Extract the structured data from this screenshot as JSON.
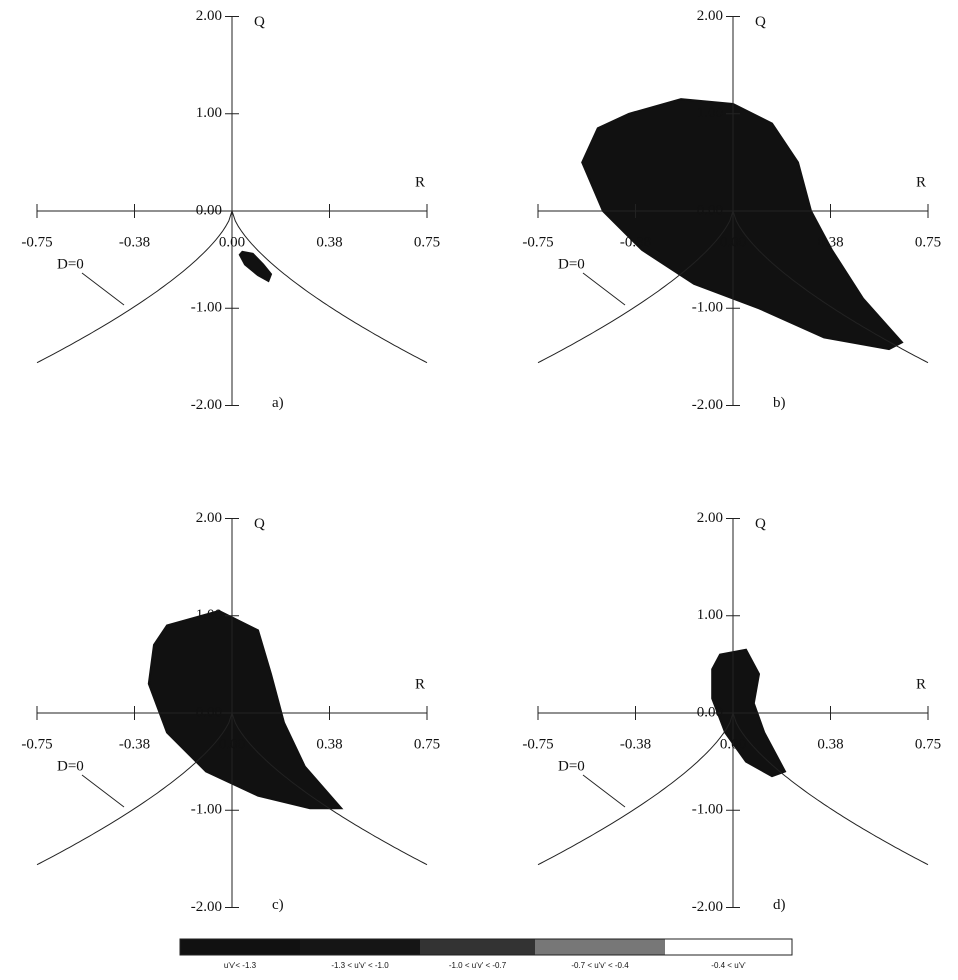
{
  "chart_data": [
    {
      "type": "region",
      "xlabel": "R",
      "ylabel": "Q",
      "panel_label": "a)",
      "curve_label": "D=0",
      "xlim": [
        -0.75,
        0.75
      ],
      "ylim": [
        -2,
        2
      ],
      "xticks": [
        -0.75,
        {
          "value": -0.375,
          "label": "-0.38"
        },
        {
          "value": 0,
          "label": "0.00"
        },
        {
          "value": 0.375,
          "label": "0.38"
        },
        0.75
      ],
      "yticks": [
        {
          "value": -2,
          "label": "-2.00"
        },
        {
          "value": -1,
          "label": "-1.00"
        },
        {
          "value": 0,
          "label": "0.00"
        },
        {
          "value": 1,
          "label": "1.00"
        },
        {
          "value": 2,
          "label": "2.00"
        }
      ],
      "color": "#111111",
      "region": {
        "x": [
          0.04,
          0.08,
          0.12,
          0.15,
          0.14,
          0.1,
          0.05,
          0.03
        ],
        "y": [
          -0.42,
          -0.44,
          -0.55,
          -0.65,
          -0.72,
          -0.66,
          -0.55,
          -0.45
        ]
      }
    },
    {
      "type": "region",
      "xlabel": "R",
      "ylabel": "Q",
      "panel_label": "b)",
      "curve_label": "D=0",
      "xlim": [
        -0.75,
        0.75
      ],
      "ylim": [
        -2,
        2
      ],
      "xticks": [
        -0.75,
        {
          "value": -0.375,
          "label": "-0.38"
        },
        {
          "value": 0,
          "label": "0.00"
        },
        {
          "value": 0.375,
          "label": "0.38"
        },
        0.75
      ],
      "yticks": [
        {
          "value": -2,
          "label": "-2.00"
        },
        {
          "value": -1,
          "label": "-1.00"
        },
        {
          "value": 0,
          "label": "0.00"
        },
        {
          "value": 1,
          "label": "1.00"
        },
        {
          "value": 2,
          "label": "2.00"
        }
      ],
      "color": "#111111",
      "region": {
        "x": [
          -0.4,
          -0.2,
          0.0,
          0.15,
          0.25,
          0.3,
          0.38,
          0.5,
          0.65,
          0.6,
          0.35,
          0.1,
          -0.15,
          -0.35,
          -0.5,
          -0.58,
          -0.52
        ],
        "y": [
          1.0,
          1.15,
          1.1,
          0.9,
          0.5,
          0.0,
          -0.4,
          -0.9,
          -1.35,
          -1.42,
          -1.3,
          -1.0,
          -0.75,
          -0.4,
          0.0,
          0.5,
          0.85
        ]
      }
    },
    {
      "type": "region",
      "xlabel": "R",
      "ylabel": "Q",
      "panel_label": "c)",
      "curve_label": "D=0",
      "xlim": [
        -0.75,
        0.75
      ],
      "ylim": [
        -2,
        2
      ],
      "xticks": [
        -0.75,
        {
          "value": -0.375,
          "label": "-0.38"
        },
        {
          "value": 0,
          "label": "0.00"
        },
        {
          "value": 0.375,
          "label": "0.38"
        },
        0.75
      ],
      "yticks": [
        {
          "value": -2,
          "label": "-2.00"
        },
        {
          "value": -1,
          "label": "-1.00"
        },
        {
          "value": 0,
          "label": "0.00"
        },
        {
          "value": 1,
          "label": "1.00"
        },
        {
          "value": 2,
          "label": "2.00"
        }
      ],
      "color": "#111111",
      "region": {
        "x": [
          -0.25,
          -0.05,
          0.1,
          0.15,
          0.2,
          0.28,
          0.42,
          0.3,
          0.1,
          -0.1,
          -0.25,
          -0.32,
          -0.3
        ],
        "y": [
          0.9,
          1.05,
          0.85,
          0.4,
          -0.1,
          -0.55,
          -0.98,
          -0.98,
          -0.85,
          -0.6,
          -0.2,
          0.3,
          0.7
        ]
      }
    },
    {
      "type": "region",
      "xlabel": "R",
      "ylabel": "Q",
      "panel_label": "d)",
      "curve_label": "D=0",
      "xlim": [
        -0.75,
        0.75
      ],
      "ylim": [
        -2,
        2
      ],
      "xticks": [
        -0.75,
        {
          "value": -0.375,
          "label": "-0.38"
        },
        {
          "value": 0,
          "label": "0.00"
        },
        {
          "value": 0.375,
          "label": "0.38"
        },
        0.75
      ],
      "yticks": [
        {
          "value": -2,
          "label": "-2.00"
        },
        {
          "value": -1,
          "label": "-1.00"
        },
        {
          "value": 0,
          "label": "0.00"
        },
        {
          "value": 1,
          "label": "1.00"
        },
        {
          "value": 2,
          "label": "2.00"
        }
      ],
      "color": "#111111",
      "region": {
        "x": [
          -0.05,
          0.05,
          0.1,
          0.08,
          0.12,
          0.2,
          0.15,
          0.05,
          -0.03,
          -0.08,
          -0.08
        ],
        "y": [
          0.6,
          0.65,
          0.4,
          0.1,
          -0.2,
          -0.6,
          -0.65,
          -0.5,
          -0.2,
          0.15,
          0.45
        ]
      }
    }
  ],
  "legend": {
    "labels": [
      "u'v'< -1.3",
      "-1.3 < u'v' < -1.0",
      "-1.0 < u'v' < -0.7",
      "-0.7 < u'v' < -0.4",
      "-0.4 < u'v'"
    ],
    "colors": [
      "#111111",
      "#151515",
      "#333333",
      "#777777",
      "#ffffff"
    ]
  }
}
